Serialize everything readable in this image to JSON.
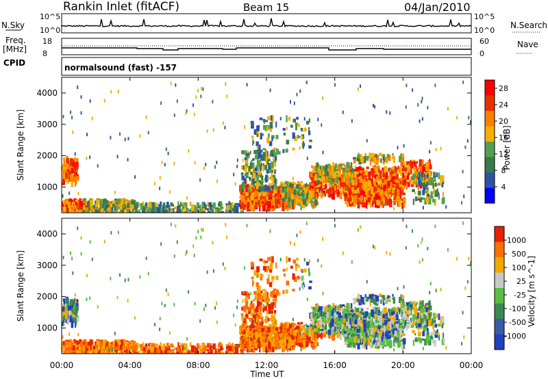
{
  "header": {
    "title": "Rankin Inlet (fitACF)",
    "beam": "Beam 15",
    "date": "04/Jan/2010"
  },
  "top_panels": {
    "nsky_label": "N.Sky",
    "nsky_ticks": [
      "10^5",
      "10^0"
    ],
    "nsearch_label": "N.Search",
    "freq_label": "Freq.",
    "freq_unit": "[MHz]",
    "freq_ticks": [
      "18",
      "8"
    ],
    "nave_label": "Nave",
    "nave_ticks": [
      "60",
      "0"
    ],
    "cpid_label": "CPID",
    "cpid_value": "normalsound (fast) -157"
  },
  "chart_data": [
    {
      "type": "heatmap",
      "title": "",
      "xlabel": "Time UT",
      "ylabel": "Slant Range [km]",
      "x_ticks": [
        "00:00",
        "04:00",
        "08:00",
        "12:00",
        "16:00",
        "20:00",
        "00:00"
      ],
      "y_ticks": [
        1000,
        2000,
        3000,
        4000
      ],
      "ylim": [
        180,
        4500
      ],
      "colorbar": {
        "label": "Power [dB]",
        "ticks": [
          4,
          8,
          12,
          16,
          20,
          24,
          28
        ],
        "range": [
          0,
          30
        ],
        "colors": [
          "#0000ff",
          "#2f52a8",
          "#3a7a48",
          "#52a050",
          "#f5b000",
          "#ff7f00",
          "#e83000",
          "#ff0000"
        ]
      }
    },
    {
      "type": "heatmap",
      "title": "",
      "xlabel": "Time UT",
      "ylabel": "Slant Range [km]",
      "x_ticks": [
        "00:00",
        "04:00",
        "08:00",
        "12:00",
        "16:00",
        "20:00",
        "00:00"
      ],
      "y_ticks": [
        1000,
        2000,
        3000,
        4000
      ],
      "ylim": [
        180,
        4500
      ],
      "colorbar": {
        "label": "Velocity [m s^-1]",
        "ticks": [
          1000,
          500,
          100,
          25,
          -25,
          -100,
          -500,
          -1000
        ],
        "colors": [
          "#2040c0",
          "#3a5aa8",
          "#3a8a50",
          "#58c040",
          "#c8c8c8",
          "#f5a800",
          "#ff7000",
          "#e82000"
        ]
      }
    }
  ]
}
